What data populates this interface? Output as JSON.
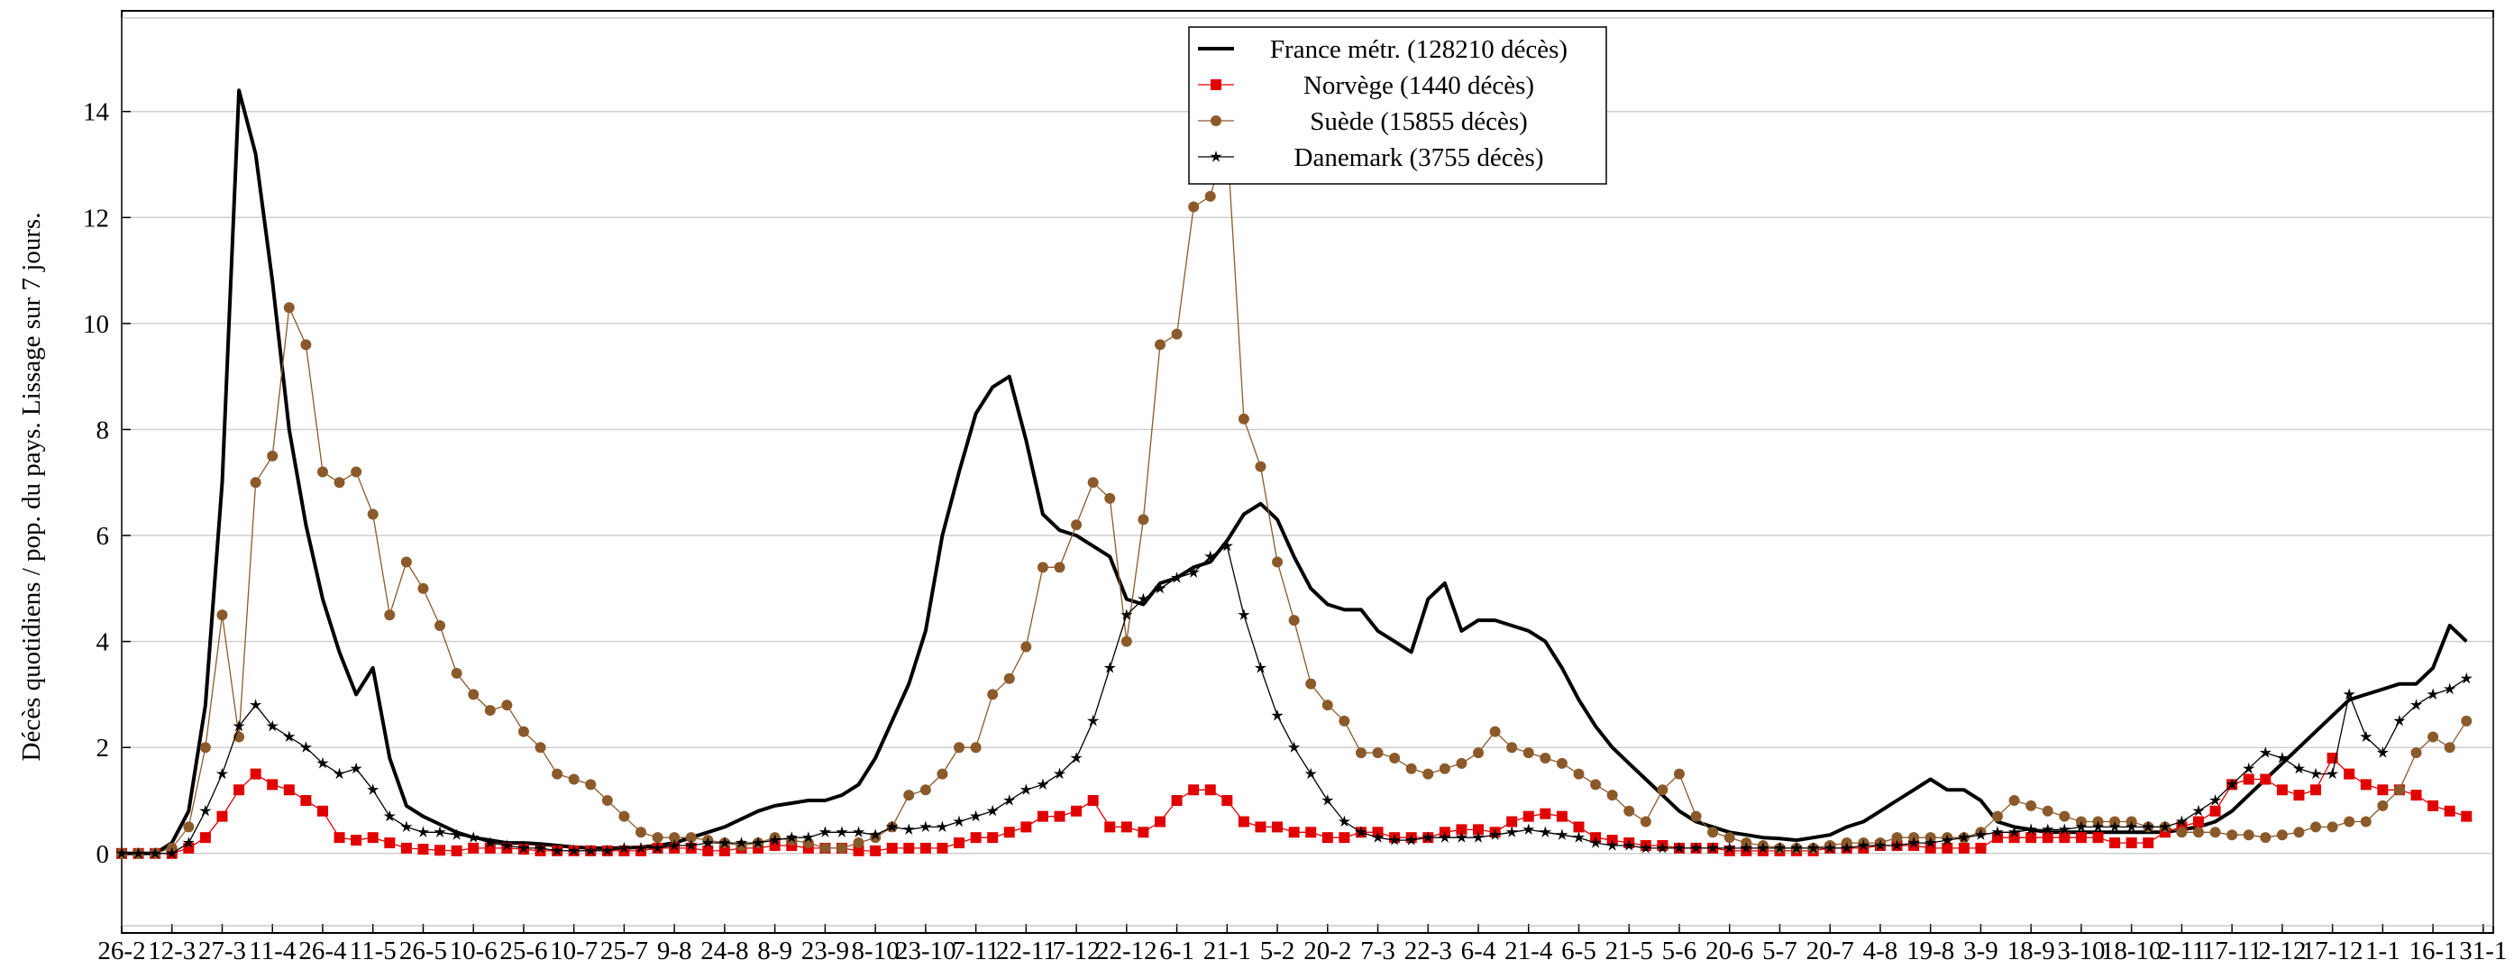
{
  "chart_data": {
    "type": "line",
    "ylabel": "Décès quotidiens / pop. du pays. Lissage sur 7 jours.",
    "legend": "upper center",
    "grid": true,
    "xlim": [
      0,
      708
    ],
    "ylim": [
      -1.5,
      15.9
    ],
    "yticks": [
      0,
      2,
      4,
      6,
      8,
      10,
      12,
      14
    ],
    "xticks": [
      {
        "value": 0,
        "label": "26-2"
      },
      {
        "value": 15,
        "label": "12-3"
      },
      {
        "value": 30,
        "label": "27-3"
      },
      {
        "value": 45,
        "label": "11-4"
      },
      {
        "value": 60,
        "label": "26-4"
      },
      {
        "value": 75,
        "label": "11-5"
      },
      {
        "value": 90,
        "label": "26-5"
      },
      {
        "value": 105,
        "label": "10-6"
      },
      {
        "value": 120,
        "label": "25-6"
      },
      {
        "value": 135,
        "label": "10-7"
      },
      {
        "value": 150,
        "label": "25-7"
      },
      {
        "value": 165,
        "label": "9-8"
      },
      {
        "value": 180,
        "label": "24-8"
      },
      {
        "value": 195,
        "label": "8-9"
      },
      {
        "value": 210,
        "label": "23-9"
      },
      {
        "value": 225,
        "label": "8-10"
      },
      {
        "value": 240,
        "label": "23-10"
      },
      {
        "value": 255,
        "label": "7-11"
      },
      {
        "value": 270,
        "label": "22-11"
      },
      {
        "value": 285,
        "label": "7-12"
      },
      {
        "value": 300,
        "label": "22-12"
      },
      {
        "value": 315,
        "label": "6-1"
      },
      {
        "value": 330,
        "label": "21-1"
      },
      {
        "value": 345,
        "label": "5-2"
      },
      {
        "value": 360,
        "label": "20-2"
      },
      {
        "value": 375,
        "label": "7-3"
      },
      {
        "value": 390,
        "label": "22-3"
      },
      {
        "value": 405,
        "label": "6-4"
      },
      {
        "value": 420,
        "label": "21-4"
      },
      {
        "value": 435,
        "label": "6-5"
      },
      {
        "value": 450,
        "label": "21-5"
      },
      {
        "value": 465,
        "label": "5-6"
      },
      {
        "value": 480,
        "label": "20-6"
      },
      {
        "value": 495,
        "label": "5-7"
      },
      {
        "value": 510,
        "label": "20-7"
      },
      {
        "value": 525,
        "label": "4-8"
      },
      {
        "value": 540,
        "label": "19-8"
      },
      {
        "value": 555,
        "label": "3-9"
      },
      {
        "value": 570,
        "label": "18-9"
      },
      {
        "value": 585,
        "label": "3-10"
      },
      {
        "value": 600,
        "label": "18-10"
      },
      {
        "value": 615,
        "label": "2-11"
      },
      {
        "value": 630,
        "label": "17-11"
      },
      {
        "value": 645,
        "label": "2-12"
      },
      {
        "value": 660,
        "label": "17-12"
      },
      {
        "value": 675,
        "label": "1-1"
      },
      {
        "value": 690,
        "label": "16-1"
      },
      {
        "value": 705,
        "label": "31-1"
      }
    ],
    "x": [
      0,
      5,
      10,
      15,
      20,
      25,
      30,
      35,
      40,
      45,
      50,
      55,
      60,
      65,
      70,
      75,
      80,
      85,
      90,
      95,
      100,
      105,
      110,
      115,
      120,
      125,
      130,
      135,
      140,
      145,
      150,
      155,
      160,
      165,
      170,
      175,
      180,
      185,
      190,
      195,
      200,
      205,
      210,
      215,
      220,
      225,
      230,
      235,
      240,
      245,
      250,
      255,
      260,
      265,
      270,
      275,
      280,
      285,
      290,
      295,
      300,
      305,
      310,
      315,
      320,
      325,
      330,
      335,
      340,
      345,
      350,
      355,
      360,
      365,
      370,
      375,
      380,
      385,
      390,
      395,
      400,
      405,
      410,
      415,
      420,
      425,
      430,
      435,
      440,
      445,
      450,
      455,
      460,
      465,
      470,
      475,
      480,
      485,
      490,
      495,
      500,
      505,
      510,
      515,
      520,
      525,
      530,
      535,
      540,
      545,
      550,
      555,
      560,
      565,
      570,
      575,
      580,
      585,
      590,
      595,
      600,
      605,
      610,
      615,
      620,
      625,
      630,
      635,
      640,
      645,
      650,
      655,
      660,
      665,
      670,
      675,
      680,
      685,
      690,
      695,
      700
    ],
    "series": [
      {
        "name": "France métr. (128210 décès)",
        "color": "#000000",
        "values": [
          0,
          0,
          0,
          0.2,
          0.8,
          2.8,
          7.0,
          14.4,
          13.2,
          10.8,
          8.0,
          6.2,
          4.8,
          3.8,
          3.0,
          3.5,
          1.8,
          0.9,
          0.7,
          0.55,
          0.4,
          0.3,
          0.25,
          0.2,
          0.2,
          0.18,
          0.15,
          0.12,
          0.1,
          0.1,
          0.1,
          0.12,
          0.15,
          0.2,
          0.3,
          0.4,
          0.5,
          0.65,
          0.8,
          0.9,
          0.95,
          1.0,
          1.0,
          1.1,
          1.3,
          1.8,
          2.5,
          3.2,
          4.2,
          6.0,
          7.2,
          8.3,
          8.8,
          9.0,
          7.8,
          6.4,
          6.1,
          6.0,
          5.8,
          5.6,
          4.8,
          4.7,
          5.1,
          5.2,
          5.4,
          5.5,
          5.9,
          6.4,
          6.6,
          6.3,
          5.6,
          5.0,
          4.7,
          4.6,
          4.6,
          4.2,
          4.0,
          3.8,
          4.8,
          5.1,
          4.2,
          4.4,
          4.4,
          4.3,
          4.2,
          4.0,
          3.5,
          2.9,
          2.4,
          2.0,
          1.7,
          1.4,
          1.1,
          0.8,
          0.6,
          0.5,
          0.4,
          0.35,
          0.3,
          0.28,
          0.25,
          0.3,
          0.35,
          0.5,
          0.6,
          0.8,
          1.0,
          1.2,
          1.4,
          1.2,
          1.2,
          1.0,
          0.6,
          0.5,
          0.45,
          0.4,
          0.4,
          0.4,
          0.4,
          0.4,
          0.4,
          0.4,
          0.4,
          0.45,
          0.5,
          0.6,
          0.8,
          1.1,
          1.4,
          1.7,
          2.0,
          2.3,
          2.6,
          2.9,
          3.0,
          3.1,
          3.2,
          3.2,
          3.5,
          4.3,
          4.0
        ]
      },
      {
        "name": "Norvège (1440 décès)",
        "color": "#e00000",
        "marker": "square",
        "values": [
          0,
          0,
          0,
          0,
          0.1,
          0.3,
          0.7,
          1.2,
          1.5,
          1.3,
          1.2,
          1.0,
          0.8,
          0.3,
          0.25,
          0.3,
          0.2,
          0.1,
          0.08,
          0.06,
          0.05,
          0.1,
          0.1,
          0.1,
          0.08,
          0.05,
          0.05,
          0.05,
          0.05,
          0.05,
          0.05,
          0.05,
          0.1,
          0.1,
          0.1,
          0.05,
          0.05,
          0.1,
          0.1,
          0.15,
          0.15,
          0.1,
          0.1,
          0.1,
          0.05,
          0.05,
          0.1,
          0.1,
          0.1,
          0.1,
          0.2,
          0.3,
          0.3,
          0.4,
          0.5,
          0.7,
          0.7,
          0.8,
          1.0,
          0.5,
          0.5,
          0.4,
          0.6,
          1.0,
          1.2,
          1.2,
          1.0,
          0.6,
          0.5,
          0.5,
          0.4,
          0.4,
          0.3,
          0.3,
          0.4,
          0.4,
          0.3,
          0.3,
          0.3,
          0.4,
          0.45,
          0.45,
          0.4,
          0.6,
          0.7,
          0.75,
          0.7,
          0.5,
          0.3,
          0.25,
          0.2,
          0.15,
          0.15,
          0.1,
          0.1,
          0.1,
          0.05,
          0.05,
          0.05,
          0.05,
          0.05,
          0.05,
          0.1,
          0.1,
          0.1,
          0.15,
          0.15,
          0.15,
          0.1,
          0.1,
          0.1,
          0.1,
          0.3,
          0.3,
          0.3,
          0.3,
          0.3,
          0.3,
          0.3,
          0.2,
          0.2,
          0.2,
          0.4,
          0.5,
          0.6,
          0.8,
          1.3,
          1.4,
          1.4,
          1.2,
          1.1,
          1.2,
          1.8,
          1.5,
          1.3,
          1.2,
          1.2,
          1.1,
          0.9,
          0.8,
          0.7
        ]
      },
      {
        "name": "Suède (15855 décès)",
        "color": "#8b5a2b",
        "marker": "circle",
        "values": [
          0,
          0,
          0,
          0.1,
          0.5,
          2.0,
          4.5,
          2.2,
          7.0,
          7.5,
          10.3,
          9.6,
          7.2,
          7.0,
          7.2,
          6.4,
          4.5,
          5.5,
          5.0,
          4.3,
          3.4,
          3.0,
          2.7,
          2.8,
          2.3,
          2.0,
          1.5,
          1.4,
          1.3,
          1.0,
          0.7,
          0.4,
          0.3,
          0.3,
          0.3,
          0.25,
          0.2,
          0.15,
          0.2,
          0.3,
          0.25,
          0.2,
          0.1,
          0.1,
          0.2,
          0.3,
          0.5,
          1.1,
          1.2,
          1.5,
          2.0,
          2.0,
          3.0,
          3.3,
          3.9,
          5.4,
          5.4,
          6.2,
          7.0,
          6.7,
          4.0,
          6.3,
          9.6,
          9.8,
          12.2,
          12.4,
          13.5,
          8.2,
          7.3,
          5.5,
          4.4,
          3.2,
          2.8,
          2.5,
          1.9,
          1.9,
          1.8,
          1.6,
          1.5,
          1.6,
          1.7,
          1.9,
          2.3,
          2.0,
          1.9,
          1.8,
          1.7,
          1.5,
          1.3,
          1.1,
          0.8,
          0.6,
          1.2,
          1.5,
          0.7,
          0.4,
          0.3,
          0.2,
          0.15,
          0.1,
          0.1,
          0.1,
          0.15,
          0.2,
          0.2,
          0.2,
          0.3,
          0.3,
          0.3,
          0.3,
          0.3,
          0.4,
          0.7,
          1.0,
          0.9,
          0.8,
          0.7,
          0.6,
          0.6,
          0.6,
          0.6,
          0.5,
          0.5,
          0.4,
          0.4,
          0.4,
          0.35,
          0.35,
          0.3,
          0.35,
          0.4,
          0.5,
          0.5,
          0.6,
          0.6,
          0.9,
          1.2,
          1.9,
          2.2,
          2.0,
          2.5
        ]
      },
      {
        "name": "Danemark (3755 décès)",
        "color": "#000000",
        "marker": "star",
        "values": [
          0,
          0,
          0,
          0,
          0.2,
          0.8,
          1.5,
          2.4,
          2.8,
          2.4,
          2.2,
          2.0,
          1.7,
          1.5,
          1.6,
          1.2,
          0.7,
          0.5,
          0.4,
          0.4,
          0.35,
          0.3,
          0.2,
          0.15,
          0.1,
          0.1,
          0.05,
          0.05,
          0.05,
          0.05,
          0.1,
          0.1,
          0.1,
          0.15,
          0.15,
          0.2,
          0.2,
          0.2,
          0.2,
          0.25,
          0.3,
          0.3,
          0.4,
          0.4,
          0.4,
          0.35,
          0.5,
          0.45,
          0.5,
          0.5,
          0.6,
          0.7,
          0.8,
          1.0,
          1.2,
          1.3,
          1.5,
          1.8,
          2.5,
          3.5,
          4.5,
          4.8,
          5.0,
          5.2,
          5.3,
          5.6,
          5.8,
          4.5,
          3.5,
          2.6,
          2.0,
          1.5,
          1.0,
          0.6,
          0.4,
          0.3,
          0.25,
          0.25,
          0.3,
          0.3,
          0.3,
          0.3,
          0.35,
          0.4,
          0.45,
          0.4,
          0.35,
          0.3,
          0.2,
          0.15,
          0.15,
          0.1,
          0.1,
          0.1,
          0.1,
          0.1,
          0.1,
          0.1,
          0.1,
          0.1,
          0.1,
          0.1,
          0.1,
          0.1,
          0.15,
          0.15,
          0.15,
          0.2,
          0.2,
          0.25,
          0.3,
          0.35,
          0.4,
          0.4,
          0.45,
          0.45,
          0.45,
          0.5,
          0.5,
          0.5,
          0.5,
          0.5,
          0.5,
          0.6,
          0.8,
          1.0,
          1.3,
          1.6,
          1.9,
          1.8,
          1.6,
          1.5,
          1.5,
          3.0,
          2.2,
          1.9,
          2.5,
          2.8,
          3.0,
          3.1,
          3.3
        ]
      }
    ]
  }
}
